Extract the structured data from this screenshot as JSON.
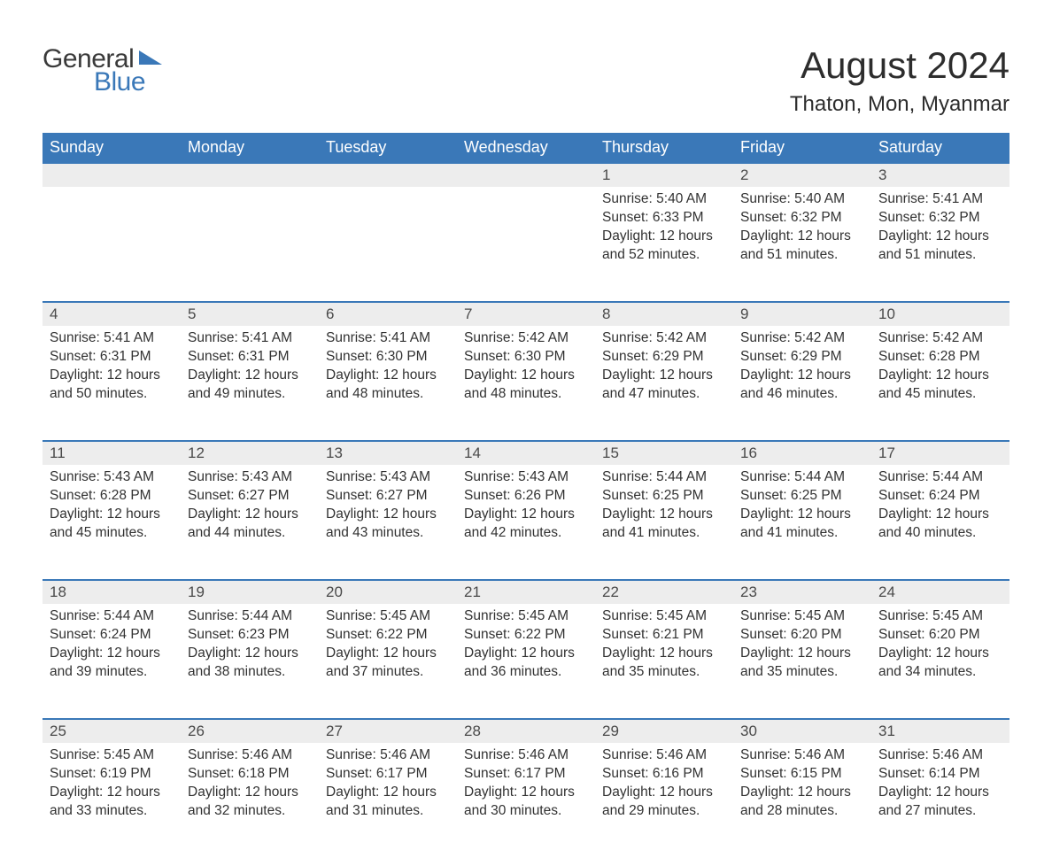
{
  "brand": {
    "word1": "General",
    "word2": "Blue"
  },
  "title": "August 2024",
  "location": "Thaton, Mon, Myanmar",
  "colors": {
    "header_bg": "#3a78b8",
    "header_text": "#ffffff",
    "daynum_bg": "#ededed",
    "row_border": "#3a78b8",
    "body_text": "#323232",
    "page_bg": "#ffffff"
  },
  "weekdays": [
    "Sunday",
    "Monday",
    "Tuesday",
    "Wednesday",
    "Thursday",
    "Friday",
    "Saturday"
  ],
  "weeks": [
    [
      null,
      null,
      null,
      null,
      {
        "n": "1",
        "sunrise": "5:40 AM",
        "sunset": "6:33 PM",
        "dl": "12 hours and 52 minutes."
      },
      {
        "n": "2",
        "sunrise": "5:40 AM",
        "sunset": "6:32 PM",
        "dl": "12 hours and 51 minutes."
      },
      {
        "n": "3",
        "sunrise": "5:41 AM",
        "sunset": "6:32 PM",
        "dl": "12 hours and 51 minutes."
      }
    ],
    [
      {
        "n": "4",
        "sunrise": "5:41 AM",
        "sunset": "6:31 PM",
        "dl": "12 hours and 50 minutes."
      },
      {
        "n": "5",
        "sunrise": "5:41 AM",
        "sunset": "6:31 PM",
        "dl": "12 hours and 49 minutes."
      },
      {
        "n": "6",
        "sunrise": "5:41 AM",
        "sunset": "6:30 PM",
        "dl": "12 hours and 48 minutes."
      },
      {
        "n": "7",
        "sunrise": "5:42 AM",
        "sunset": "6:30 PM",
        "dl": "12 hours and 48 minutes."
      },
      {
        "n": "8",
        "sunrise": "5:42 AM",
        "sunset": "6:29 PM",
        "dl": "12 hours and 47 minutes."
      },
      {
        "n": "9",
        "sunrise": "5:42 AM",
        "sunset": "6:29 PM",
        "dl": "12 hours and 46 minutes."
      },
      {
        "n": "10",
        "sunrise": "5:42 AM",
        "sunset": "6:28 PM",
        "dl": "12 hours and 45 minutes."
      }
    ],
    [
      {
        "n": "11",
        "sunrise": "5:43 AM",
        "sunset": "6:28 PM",
        "dl": "12 hours and 45 minutes."
      },
      {
        "n": "12",
        "sunrise": "5:43 AM",
        "sunset": "6:27 PM",
        "dl": "12 hours and 44 minutes."
      },
      {
        "n": "13",
        "sunrise": "5:43 AM",
        "sunset": "6:27 PM",
        "dl": "12 hours and 43 minutes."
      },
      {
        "n": "14",
        "sunrise": "5:43 AM",
        "sunset": "6:26 PM",
        "dl": "12 hours and 42 minutes."
      },
      {
        "n": "15",
        "sunrise": "5:44 AM",
        "sunset": "6:25 PM",
        "dl": "12 hours and 41 minutes."
      },
      {
        "n": "16",
        "sunrise": "5:44 AM",
        "sunset": "6:25 PM",
        "dl": "12 hours and 41 minutes."
      },
      {
        "n": "17",
        "sunrise": "5:44 AM",
        "sunset": "6:24 PM",
        "dl": "12 hours and 40 minutes."
      }
    ],
    [
      {
        "n": "18",
        "sunrise": "5:44 AM",
        "sunset": "6:24 PM",
        "dl": "12 hours and 39 minutes."
      },
      {
        "n": "19",
        "sunrise": "5:44 AM",
        "sunset": "6:23 PM",
        "dl": "12 hours and 38 minutes."
      },
      {
        "n": "20",
        "sunrise": "5:45 AM",
        "sunset": "6:22 PM",
        "dl": "12 hours and 37 minutes."
      },
      {
        "n": "21",
        "sunrise": "5:45 AM",
        "sunset": "6:22 PM",
        "dl": "12 hours and 36 minutes."
      },
      {
        "n": "22",
        "sunrise": "5:45 AM",
        "sunset": "6:21 PM",
        "dl": "12 hours and 35 minutes."
      },
      {
        "n": "23",
        "sunrise": "5:45 AM",
        "sunset": "6:20 PM",
        "dl": "12 hours and 35 minutes."
      },
      {
        "n": "24",
        "sunrise": "5:45 AM",
        "sunset": "6:20 PM",
        "dl": "12 hours and 34 minutes."
      }
    ],
    [
      {
        "n": "25",
        "sunrise": "5:45 AM",
        "sunset": "6:19 PM",
        "dl": "12 hours and 33 minutes."
      },
      {
        "n": "26",
        "sunrise": "5:46 AM",
        "sunset": "6:18 PM",
        "dl": "12 hours and 32 minutes."
      },
      {
        "n": "27",
        "sunrise": "5:46 AM",
        "sunset": "6:17 PM",
        "dl": "12 hours and 31 minutes."
      },
      {
        "n": "28",
        "sunrise": "5:46 AM",
        "sunset": "6:17 PM",
        "dl": "12 hours and 30 minutes."
      },
      {
        "n": "29",
        "sunrise": "5:46 AM",
        "sunset": "6:16 PM",
        "dl": "12 hours and 29 minutes."
      },
      {
        "n": "30",
        "sunrise": "5:46 AM",
        "sunset": "6:15 PM",
        "dl": "12 hours and 28 minutes."
      },
      {
        "n": "31",
        "sunrise": "5:46 AM",
        "sunset": "6:14 PM",
        "dl": "12 hours and 27 minutes."
      }
    ]
  ],
  "labels": {
    "sunrise": "Sunrise:",
    "sunset": "Sunset:",
    "daylight": "Daylight:"
  }
}
